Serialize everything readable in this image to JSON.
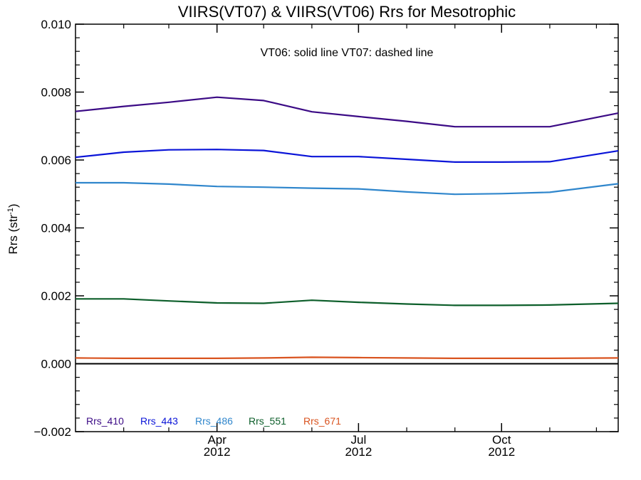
{
  "chart_data": {
    "type": "line",
    "title": "VIIRS(VT07) & VIIRS(VT06)  Rrs for Mesotrophic",
    "annotation": "VT06: solid line   VT07: dashed line",
    "ylabel": {
      "base": "Rrs (str",
      "superscript": "-1",
      "close": ")"
    },
    "ylim": [
      -0.002,
      0.01
    ],
    "yticks": [
      "0.010",
      "0.008",
      "0.006",
      "0.004",
      "0.002",
      "0.000",
      "−0.002"
    ],
    "ytick_values": [
      0.01,
      0.008,
      0.006,
      0.004,
      0.002,
      0.0,
      -0.002
    ],
    "xlim": [
      "2012-01-01",
      "2012-12-15"
    ],
    "xticks": [
      {
        "date": "2012-04-01",
        "month": "Apr",
        "year": "2012"
      },
      {
        "date": "2012-07-01",
        "month": "Jul",
        "year": "2012"
      },
      {
        "date": "2012-10-01",
        "month": "Oct",
        "year": "2012"
      }
    ],
    "zero_line": 0.0,
    "x": [
      "2012-01-01",
      "2012-02-01",
      "2012-03-01",
      "2012-04-01",
      "2012-05-01",
      "2012-06-01",
      "2012-07-01",
      "2012-08-01",
      "2012-09-01",
      "2012-10-01",
      "2012-11-01",
      "2012-12-15"
    ],
    "series": [
      {
        "name": "Rrs_410",
        "color": "#3b0a85",
        "values": [
          0.00743,
          0.00758,
          0.0077,
          0.00785,
          0.00775,
          0.00742,
          0.00728,
          0.00714,
          0.00698,
          0.00698,
          0.00698,
          0.00738
        ]
      },
      {
        "name": "Rrs_443",
        "color": "#0a14d8",
        "values": [
          0.00608,
          0.00623,
          0.0063,
          0.00631,
          0.00628,
          0.0061,
          0.0061,
          0.00602,
          0.00594,
          0.00594,
          0.00595,
          0.00627
        ]
      },
      {
        "name": "Rrs_486",
        "color": "#2f86cc",
        "values": [
          0.00533,
          0.00533,
          0.00529,
          0.00522,
          0.0052,
          0.00517,
          0.00515,
          0.00506,
          0.00499,
          0.00501,
          0.00505,
          0.0053
        ]
      },
      {
        "name": "Rrs_551",
        "color": "#0c5e2a",
        "values": [
          0.00191,
          0.00191,
          0.00185,
          0.00179,
          0.00178,
          0.00187,
          0.00181,
          0.00176,
          0.00172,
          0.00172,
          0.00173,
          0.00178
        ]
      },
      {
        "name": "Rrs_671",
        "color": "#d9531f",
        "values": [
          0.00017,
          0.00016,
          0.00016,
          0.00016,
          0.00017,
          0.00019,
          0.00018,
          0.00017,
          0.00016,
          0.00016,
          0.00016,
          0.00017
        ]
      }
    ],
    "legend_placement": "bottom-left",
    "grid": false
  }
}
